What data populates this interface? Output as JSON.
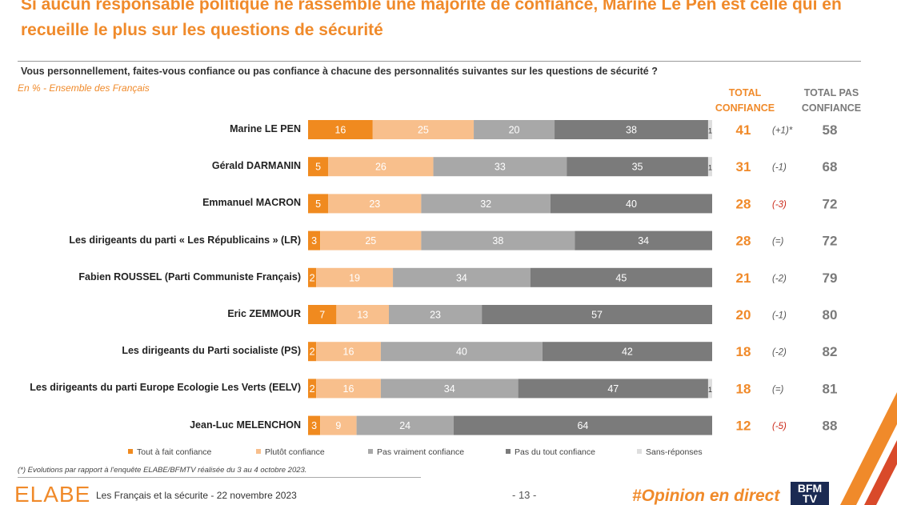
{
  "title": "Si aucun responsable politique ne rassemble une majorité de confiance, Marine Le Pen est celle qui en recueille le plus sur les questions de sécurité",
  "question": "Vous personnellement, faites-vous confiance ou pas confiance à chacune des personnalités suivantes sur les questions de sécurité ?",
  "subtitle": "En % - Ensemble des Français",
  "columns": {
    "total_label": "TOTAL CONFIANCE",
    "total_pas_label": "TOTAL PAS CONFIANCE"
  },
  "colors": {
    "tout_a_fait": "#f08a1f",
    "plutot": "#f8bf8c",
    "pas_vraiment": "#a8a8a8",
    "pas_du_tout": "#7b7b7b",
    "sans_reponse": "#dedede",
    "accent": "#f08a2a",
    "negative": "#cc2a1a"
  },
  "chart_data": {
    "type": "bar",
    "orientation": "horizontal",
    "stacked": true,
    "unit": "%",
    "xlim": [
      0,
      100
    ],
    "title": "Vous personnellement, faites-vous confiance ou pas confiance à chacune des personnalités suivantes sur les questions de sécurité ?",
    "categories": [
      "Marine LE PEN",
      "Gérald DARMANIN",
      "Emmanuel MACRON",
      "Les dirigeants du parti « Les Républicains » (LR)",
      "Fabien ROUSSEL (Parti Communiste Français)",
      "Eric ZEMMOUR",
      "Les dirigeants du Parti socialiste (PS)",
      "Les dirigeants du parti Europe Ecologie Les Verts (EELV)",
      "Jean-Luc MELENCHON"
    ],
    "series": [
      {
        "name": "Tout à fait confiance",
        "values": [
          16,
          5,
          5,
          3,
          2,
          7,
          2,
          2,
          3
        ]
      },
      {
        "name": "Plutôt confiance",
        "values": [
          25,
          26,
          23,
          25,
          19,
          13,
          16,
          16,
          9
        ]
      },
      {
        "name": "Pas vraiment confiance",
        "values": [
          20,
          33,
          32,
          38,
          34,
          23,
          40,
          34,
          24
        ]
      },
      {
        "name": "Pas du tout confiance",
        "values": [
          38,
          35,
          40,
          34,
          45,
          57,
          42,
          47,
          64
        ]
      },
      {
        "name": "Sans-réponses",
        "values": [
          1,
          1,
          0,
          0,
          0,
          0,
          0,
          1,
          0
        ]
      }
    ],
    "total_confiance": [
      41,
      31,
      28,
      28,
      21,
      20,
      18,
      18,
      12
    ],
    "evolution": [
      "(+1)*",
      "(-1)",
      "(-3)",
      "(=)",
      "(-2)",
      "(-1)",
      "(-2)",
      "(=)",
      "(-5)"
    ],
    "total_pas_confiance": [
      58,
      68,
      72,
      72,
      79,
      80,
      82,
      81,
      88
    ]
  },
  "legend": [
    "Tout à fait confiance",
    "Plutôt confiance",
    "Pas vraiment confiance",
    "Pas du tout confiance",
    "Sans-réponses"
  ],
  "footnote": "(*) Evolutions par rapport à l'enquête ELABE/BFMTV réalisée du 3 au 4 octobre 2023.",
  "footer": {
    "brand": "ELABE",
    "text": "Les Français et la sécurite - 22 novembre 2023",
    "page": "- 13 -",
    "hashtag": "#Opinion en direct",
    "logo": "BFM TV"
  }
}
